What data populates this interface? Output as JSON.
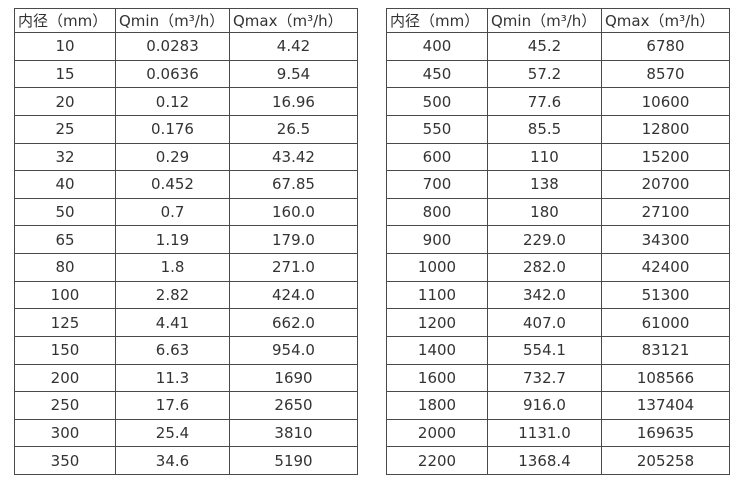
{
  "colors": {
    "border": "#4a4a4a",
    "text": "#333333",
    "background": "#ffffff"
  },
  "tables": [
    {
      "name": "flow-table-left",
      "headers": [
        "内径（mm）",
        "Qmin（m³/h）",
        "Qmax（m³/h）"
      ],
      "rows": [
        [
          "10",
          "0.0283",
          "4.42"
        ],
        [
          "15",
          "0.0636",
          "9.54"
        ],
        [
          "20",
          "0.12",
          "16.96"
        ],
        [
          "25",
          "0.176",
          "26.5"
        ],
        [
          "32",
          "0.29",
          "43.42"
        ],
        [
          "40",
          "0.452",
          "67.85"
        ],
        [
          "50",
          "0.7",
          "160.0"
        ],
        [
          "65",
          "1.19",
          "179.0"
        ],
        [
          "80",
          "1.8",
          "271.0"
        ],
        [
          "100",
          "2.82",
          "424.0"
        ],
        [
          "125",
          "4.41",
          "662.0"
        ],
        [
          "150",
          "6.63",
          "954.0"
        ],
        [
          "200",
          "11.3",
          "1690"
        ],
        [
          "250",
          "17.6",
          "2650"
        ],
        [
          "300",
          "25.4",
          "3810"
        ],
        [
          "350",
          "34.6",
          "5190"
        ]
      ]
    },
    {
      "name": "flow-table-right",
      "headers": [
        "内径（mm）",
        "Qmin（m³/h）",
        "Qmax（m³/h）"
      ],
      "rows": [
        [
          "400",
          "45.2",
          "6780"
        ],
        [
          "450",
          "57.2",
          "8570"
        ],
        [
          "500",
          "77.6",
          "10600"
        ],
        [
          "550",
          "85.5",
          "12800"
        ],
        [
          "600",
          "110",
          "15200"
        ],
        [
          "700",
          "138",
          "20700"
        ],
        [
          "800",
          "180",
          "27100"
        ],
        [
          "900",
          "229.0",
          "34300"
        ],
        [
          "1000",
          "282.0",
          "42400"
        ],
        [
          "1100",
          "342.0",
          "51300"
        ],
        [
          "1200",
          "407.0",
          "61000"
        ],
        [
          "1400",
          "554.1",
          "83121"
        ],
        [
          "1600",
          "732.7",
          "108566"
        ],
        [
          "1800",
          "916.0",
          "137404"
        ],
        [
          "2000",
          "1131.0",
          "169635"
        ],
        [
          "2200",
          "1368.4",
          "205258"
        ]
      ]
    }
  ]
}
